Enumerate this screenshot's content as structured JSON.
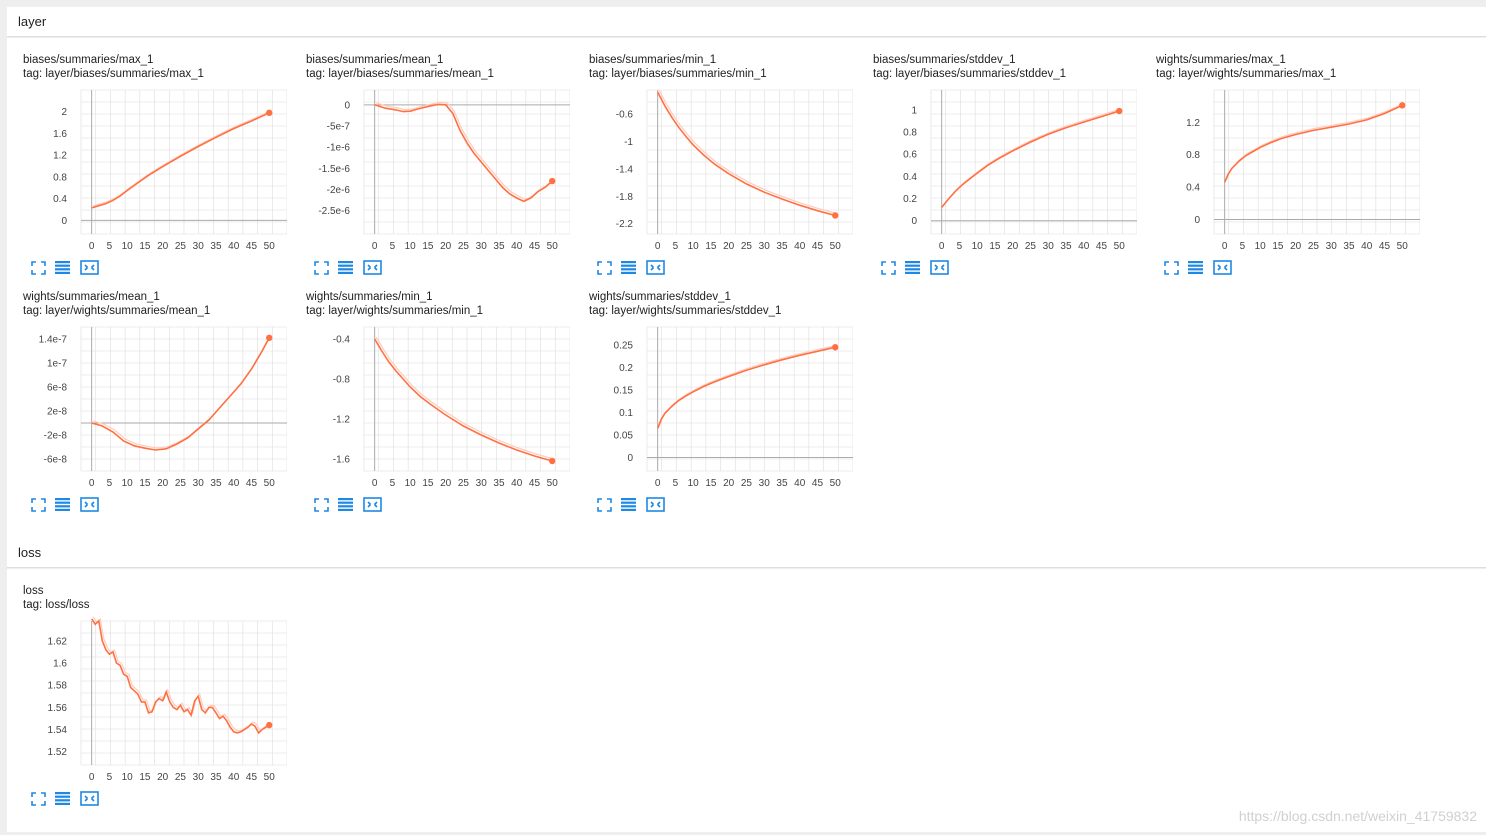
{
  "sections": [
    {
      "title": "layer",
      "cards": [
        {
          "title": "biases/summaries/max_1",
          "tag": "tag: layer/biases/summaries/max_1",
          "chart_data": {
            "type": "line",
            "xticks": [
              0,
              5,
              10,
              15,
              20,
              25,
              30,
              35,
              40,
              45,
              50
            ],
            "yticks": [
              "0",
              "0.4",
              "0.8",
              "1.2",
              "1.6",
              "2"
            ],
            "xlim": [
              -3,
              55
            ],
            "ylim": [
              -0.25,
              2.4
            ],
            "show_zero_line": true,
            "series": [
              {
                "x": [
                  0,
                  2,
                  4,
                  6,
                  8,
                  10,
                  13,
                  16,
                  20,
                  25,
                  30,
                  35,
                  40,
                  45,
                  50
                ],
                "y": [
                  0.23,
                  0.27,
                  0.31,
                  0.37,
                  0.45,
                  0.55,
                  0.69,
                  0.83,
                  0.99,
                  1.18,
                  1.36,
                  1.53,
                  1.69,
                  1.83,
                  1.98
                ]
              }
            ]
          }
        },
        {
          "title": "biases/summaries/mean_1",
          "tag": "tag: layer/biases/summaries/mean_1",
          "chart_data": {
            "type": "line",
            "xticks": [
              0,
              5,
              10,
              15,
              20,
              25,
              30,
              35,
              40,
              45,
              50
            ],
            "yticks": [
              "0",
              "-5e-7",
              "-1e-6",
              "-1.5e-6",
              "-2e-6",
              "-2.5e-6"
            ],
            "ytick_values": [
              0,
              -5e-07,
              -1e-06,
              -1.5e-06,
              -2e-06,
              -2.5e-06
            ],
            "xlim": [
              -3,
              55
            ],
            "ylim": [
              -3.05e-06,
              3.5e-07
            ],
            "show_zero_line": true,
            "series": [
              {
                "x": [
                  0,
                  3,
                  6,
                  8,
                  10,
                  12,
                  14,
                  16,
                  18,
                  20,
                  22,
                  24,
                  26,
                  28,
                  30,
                  32,
                  34,
                  36,
                  38,
                  40,
                  42,
                  44,
                  46,
                  48,
                  50
                ],
                "y": [
                  0,
                  -8e-08,
                  -1.2e-07,
                  -1.6e-07,
                  -1.5e-07,
                  -1e-07,
                  -6e-08,
                  -2e-08,
                  1e-08,
                  0,
                  -2e-07,
                  -6e-07,
                  -9e-07,
                  -1.15e-06,
                  -1.35e-06,
                  -1.55e-06,
                  -1.75e-06,
                  -1.95e-06,
                  -2.1e-06,
                  -2.2e-06,
                  -2.28e-06,
                  -2.2e-06,
                  -2.05e-06,
                  -1.95e-06,
                  -1.8e-06
                ]
              }
            ]
          }
        },
        {
          "title": "biases/summaries/min_1",
          "tag": "tag: layer/biases/summaries/min_1",
          "chart_data": {
            "type": "line",
            "xticks": [
              0,
              5,
              10,
              15,
              20,
              25,
              30,
              35,
              40,
              45,
              50
            ],
            "yticks": [
              "-0.6",
              "-1",
              "-1.4",
              "-1.8",
              "-2.2"
            ],
            "ytick_values": [
              -0.6,
              -1,
              -1.4,
              -1.8,
              -2.2
            ],
            "xlim": [
              -3,
              55
            ],
            "ylim": [
              -2.35,
              -0.25
            ],
            "show_zero_line": false,
            "series": [
              {
                "x": [
                  0,
                  2,
                  4,
                  6,
                  8,
                  10,
                  13,
                  16,
                  20,
                  25,
                  30,
                  35,
                  40,
                  45,
                  50
                ],
                "y": [
                  -0.28,
                  -0.48,
                  -0.65,
                  -0.8,
                  -0.93,
                  -1.05,
                  -1.2,
                  -1.33,
                  -1.47,
                  -1.62,
                  -1.74,
                  -1.84,
                  -1.93,
                  -2.01,
                  -2.08
                ]
              }
            ]
          }
        },
        {
          "title": "biases/summaries/stddev_1",
          "tag": "tag: layer/biases/summaries/stddev_1",
          "chart_data": {
            "type": "line",
            "xticks": [
              0,
              5,
              10,
              15,
              20,
              25,
              30,
              35,
              40,
              45,
              50
            ],
            "yticks": [
              "0",
              "0.2",
              "0.4",
              "0.6",
              "0.8",
              "1"
            ],
            "xlim": [
              -3,
              55
            ],
            "ylim": [
              -0.12,
              1.18
            ],
            "show_zero_line": true,
            "series": [
              {
                "x": [
                  0,
                  2,
                  4,
                  6,
                  8,
                  10,
                  13,
                  16,
                  20,
                  25,
                  30,
                  35,
                  40,
                  45,
                  50
                ],
                "y": [
                  0.12,
                  0.2,
                  0.27,
                  0.33,
                  0.38,
                  0.43,
                  0.5,
                  0.56,
                  0.63,
                  0.71,
                  0.78,
                  0.84,
                  0.89,
                  0.94,
                  0.99
                ]
              }
            ]
          }
        },
        {
          "title": "wights/summaries/max_1",
          "tag": "tag: layer/wights/summaries/max_1",
          "chart_data": {
            "type": "line",
            "xticks": [
              0,
              5,
              10,
              15,
              20,
              25,
              30,
              35,
              40,
              45,
              50
            ],
            "yticks": [
              "0",
              "0.4",
              "0.8",
              "1.2"
            ],
            "xlim": [
              -3,
              55
            ],
            "ylim": [
              -0.18,
              1.6
            ],
            "show_zero_line": true,
            "series": [
              {
                "x": [
                  0,
                  1,
                  2,
                  4,
                  6,
                  8,
                  10,
                  13,
                  16,
                  20,
                  25,
                  30,
                  35,
                  40,
                  45,
                  50
                ],
                "y": [
                  0.46,
                  0.56,
                  0.63,
                  0.72,
                  0.79,
                  0.84,
                  0.89,
                  0.95,
                  1.0,
                  1.05,
                  1.1,
                  1.14,
                  1.18,
                  1.23,
                  1.31,
                  1.41
                ]
              }
            ]
          }
        },
        {
          "title": "wights/summaries/mean_1",
          "tag": "tag: layer/wights/summaries/mean_1",
          "chart_data": {
            "type": "line",
            "xticks": [
              0,
              5,
              10,
              15,
              20,
              25,
              30,
              35,
              40,
              45,
              50
            ],
            "yticks": [
              "1.4e-7",
              "1e-7",
              "6e-8",
              "2e-8",
              "-2e-8",
              "-6e-8"
            ],
            "ytick_values": [
              1.4e-07,
              1e-07,
              6e-08,
              2e-08,
              -2e-08,
              -6e-08
            ],
            "xlim": [
              -3,
              55
            ],
            "ylim": [
              -8e-08,
              1.6e-07
            ],
            "show_zero_line": true,
            "series": [
              {
                "x": [
                  0,
                  3,
                  6,
                  9,
                  12,
                  15,
                  18,
                  21,
                  24,
                  27,
                  30,
                  33,
                  36,
                  39,
                  42,
                  45,
                  48,
                  50
                ],
                "y": [
                  0,
                  -5e-09,
                  -1.5e-08,
                  -3e-08,
                  -3.8e-08,
                  -4.2e-08,
                  -4.5e-08,
                  -4.3e-08,
                  -3.5e-08,
                  -2.5e-08,
                  -1e-08,
                  5e-09,
                  2.5e-08,
                  4.5e-08,
                  6.5e-08,
                  9e-08,
                  1.2e-07,
                  1.42e-07
                ]
              }
            ]
          }
        },
        {
          "title": "wights/summaries/min_1",
          "tag": "tag: layer/wights/summaries/min_1",
          "chart_data": {
            "type": "line",
            "xticks": [
              0,
              5,
              10,
              15,
              20,
              25,
              30,
              35,
              40,
              45,
              50
            ],
            "yticks": [
              "-0.4",
              "-0.8",
              "-1.2",
              "-1.6"
            ],
            "ytick_values": [
              -0.4,
              -0.8,
              -1.2,
              -1.6
            ],
            "xlim": [
              -3,
              55
            ],
            "ylim": [
              -1.72,
              -0.28
            ],
            "show_zero_line": false,
            "series": [
              {
                "x": [
                  0,
                  2,
                  4,
                  6,
                  8,
                  10,
                  13,
                  16,
                  20,
                  25,
                  30,
                  35,
                  40,
                  45,
                  50
                ],
                "y": [
                  -0.4,
                  -0.52,
                  -0.63,
                  -0.72,
                  -0.8,
                  -0.88,
                  -0.98,
                  -1.06,
                  -1.16,
                  -1.27,
                  -1.36,
                  -1.44,
                  -1.51,
                  -1.57,
                  -1.62
                ]
              }
            ]
          }
        },
        {
          "title": "wights/summaries/stddev_1",
          "tag": "tag: layer/wights/summaries/stddev_1",
          "chart_data": {
            "type": "line",
            "xticks": [
              0,
              5,
              10,
              15,
              20,
              25,
              30,
              35,
              40,
              45,
              50
            ],
            "yticks": [
              "0",
              "0.05",
              "0.1",
              "0.15",
              "0.2",
              "0.25"
            ],
            "xlim": [
              -3,
              55
            ],
            "ylim": [
              -0.03,
              0.29
            ],
            "show_zero_line": true,
            "series": [
              {
                "x": [
                  0,
                  1,
                  2,
                  4,
                  6,
                  8,
                  10,
                  13,
                  16,
                  20,
                  25,
                  30,
                  35,
                  40,
                  45,
                  50
                ],
                "y": [
                  0.065,
                  0.085,
                  0.098,
                  0.114,
                  0.127,
                  0.137,
                  0.146,
                  0.158,
                  0.168,
                  0.18,
                  0.194,
                  0.206,
                  0.217,
                  0.227,
                  0.236,
                  0.245
                ]
              }
            ]
          }
        }
      ]
    },
    {
      "title": "loss",
      "cards": [
        {
          "title": "loss",
          "tag": "tag: loss/loss",
          "chart_data": {
            "type": "line",
            "xticks": [
              0,
              5,
              10,
              15,
              20,
              25,
              30,
              35,
              40,
              45,
              50
            ],
            "yticks": [
              "1.52",
              "1.54",
              "1.56",
              "1.58",
              "1.6",
              "1.62"
            ],
            "xlim": [
              -3,
              55
            ],
            "ylim": [
              1.508,
              1.638
            ],
            "show_zero_line": false,
            "series": [
              {
                "x": [
                  0,
                  1,
                  2,
                  3,
                  4,
                  5,
                  6,
                  7,
                  8,
                  9,
                  10,
                  11,
                  12,
                  13,
                  14,
                  15,
                  16,
                  17,
                  18,
                  19,
                  20,
                  21,
                  22,
                  23,
                  24,
                  25,
                  26,
                  27,
                  28,
                  29,
                  30,
                  31,
                  32,
                  33,
                  34,
                  35,
                  36,
                  37,
                  38,
                  39,
                  40,
                  41,
                  42,
                  43,
                  44,
                  45,
                  46,
                  47,
                  48,
                  49,
                  50
                ],
                "y": [
                  1.64,
                  1.635,
                  1.638,
                  1.62,
                  1.612,
                  1.608,
                  1.61,
                  1.6,
                  1.598,
                  1.59,
                  1.588,
                  1.578,
                  1.575,
                  1.572,
                  1.565,
                  1.565,
                  1.555,
                  1.556,
                  1.565,
                  1.568,
                  1.566,
                  1.574,
                  1.565,
                  1.56,
                  1.558,
                  1.562,
                  1.556,
                  1.558,
                  1.553,
                  1.566,
                  1.57,
                  1.558,
                  1.555,
                  1.56,
                  1.56,
                  1.555,
                  1.55,
                  1.552,
                  1.548,
                  1.542,
                  1.538,
                  1.537,
                  1.538,
                  1.54,
                  1.542,
                  1.545,
                  1.543,
                  1.537,
                  1.54,
                  1.542,
                  1.544
                ]
              }
            ]
          }
        }
      ]
    }
  ],
  "toolbar_icons": [
    "expand-icon",
    "data-table-icon",
    "fit-domain-icon"
  ],
  "colors": {
    "line": "#ff7043",
    "smoothed_raw": "#ffccbc",
    "grid": "#dddddd",
    "axis": "#aaaaaa",
    "icon": "#1e88e5"
  },
  "watermark": "https://blog.csdn.net/weixin_41759832"
}
